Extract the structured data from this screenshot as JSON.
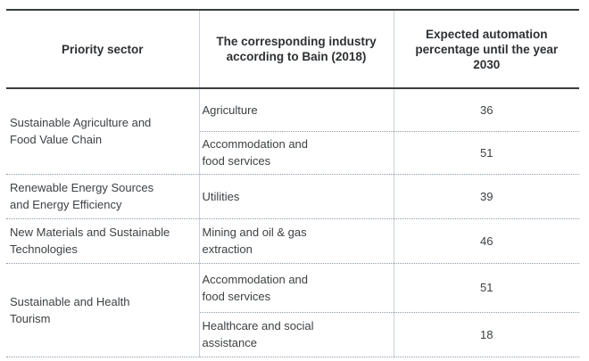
{
  "chart_data": {
    "type": "table",
    "title": "",
    "columns": [
      "Priority sector",
      "The corresponding industry according to Bain (2018)",
      "Expected automation percentage until the year 2030"
    ],
    "groups": [
      {
        "sector": "Sustainable Agriculture and Food Value Chain",
        "rows": [
          {
            "industry": "Agriculture",
            "percent": 36
          },
          {
            "industry": "Accommodation and food services",
            "percent": 51
          }
        ]
      },
      {
        "sector": "Renewable Energy Sources and Energy Efficiency",
        "rows": [
          {
            "industry": "Utilities",
            "percent": 39
          }
        ]
      },
      {
        "sector": "New Materials and Sustainable Technologies",
        "rows": [
          {
            "industry": "Mining and oil & gas extraction",
            "percent": 46
          }
        ]
      },
      {
        "sector": "Sustainable and Health Tourism",
        "rows": [
          {
            "industry": "Accommodation and food services",
            "percent": 51
          },
          {
            "industry": "Healthcare and social assistance",
            "percent": 18
          }
        ]
      }
    ],
    "layout": {
      "grid": "off",
      "header_rule_color": "#3a3d40",
      "dotted_separator_color": "#8e9aa7",
      "vertical_line_color": "#ccd2d8",
      "text_color": "#3d4144",
      "background": "#ffffff"
    }
  }
}
